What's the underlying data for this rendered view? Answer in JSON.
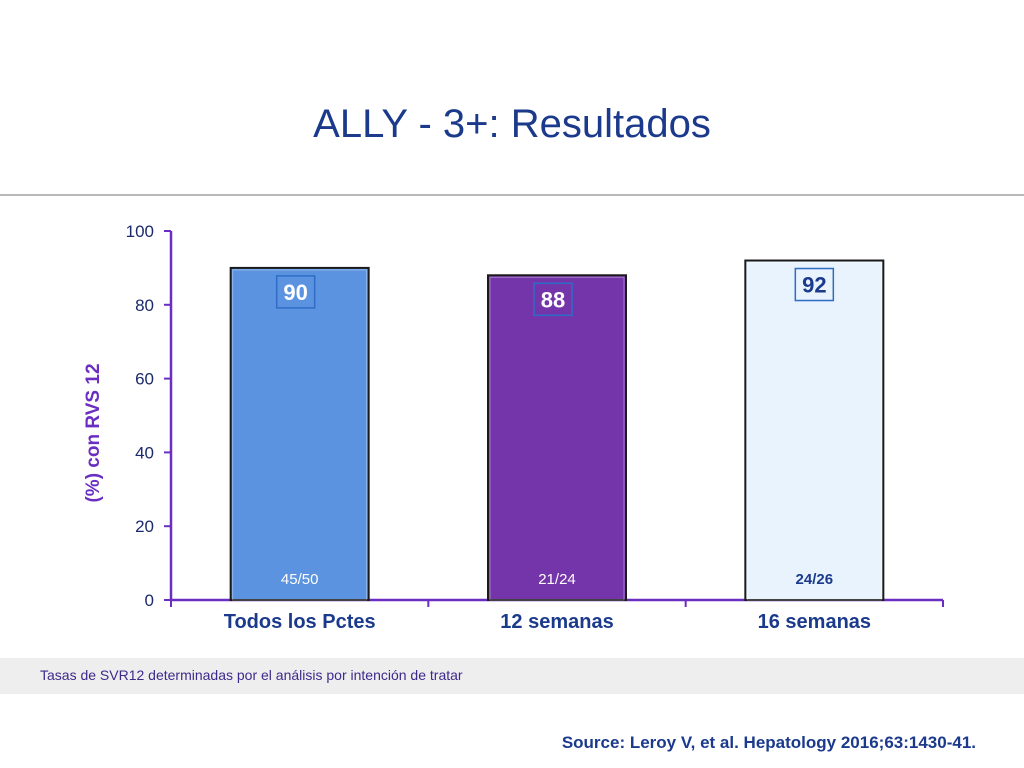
{
  "slide": {
    "title": "ALLY - 3+: Resultados",
    "footnote": "Tasas de SVR12 determinadas por el análisis por intención de tratar",
    "source": "Source: Leroy V, et al. Hepatology 2016;63:1430-41."
  },
  "chart_data": {
    "type": "bar",
    "title": "",
    "xlabel": "",
    "ylabel": "(%) con RVS 12",
    "ylim": [
      0,
      100
    ],
    "yticks": [
      "0",
      "20",
      "40",
      "60",
      "80",
      "100"
    ],
    "categories": [
      "Todos los Pctes",
      "12 semanas",
      "16 semanas"
    ],
    "values": [
      90,
      88,
      92
    ],
    "value_labels": [
      "90",
      "88",
      "92"
    ],
    "counts": [
      "45/50",
      "21/24",
      "24/26"
    ],
    "colors": [
      "#5b93e0",
      "#7535aa",
      "#e8f3fd"
    ],
    "count_label_colors": [
      "#ffffff",
      "#ffffff",
      "#1b3a8c"
    ],
    "axis_color": "#6a2fc2",
    "value_box_border": "#2e6cc7",
    "grid": false,
    "legend": "none"
  }
}
